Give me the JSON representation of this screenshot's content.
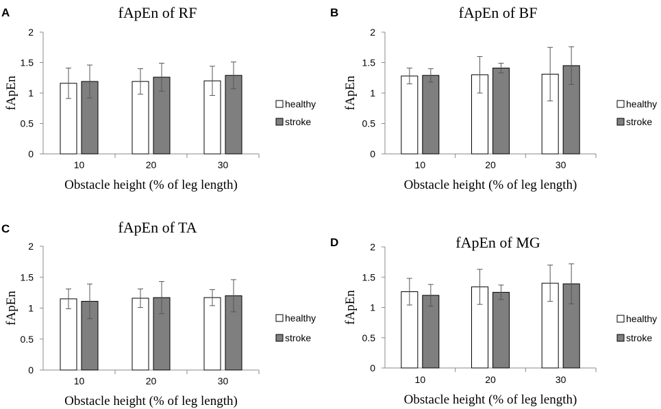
{
  "figure": {
    "legend_labels": [
      "healthy",
      "stroke"
    ],
    "colors": {
      "healthy": "#ffffff",
      "stroke": "#7f7f7f",
      "bar_edge": "#000000"
    }
  },
  "chart_data": [
    {
      "panel": "A",
      "type": "bar",
      "title": "fApEn of RF",
      "xlabel": "Obstacle height (% of leg length)",
      "ylabel": "fApEn",
      "categories": [
        "10",
        "20",
        "30"
      ],
      "ylim": [
        0,
        2
      ],
      "yticks": [
        "0",
        "0.5",
        "1",
        "1.5",
        "2"
      ],
      "legend": "right",
      "series": [
        {
          "name": "healthy",
          "values": [
            1.16,
            1.19,
            1.2
          ],
          "errors": [
            0.25,
            0.21,
            0.24
          ]
        },
        {
          "name": "stroke",
          "values": [
            1.19,
            1.26,
            1.29
          ],
          "errors": [
            0.27,
            0.23,
            0.22
          ]
        }
      ]
    },
    {
      "panel": "B",
      "type": "bar",
      "title": "fApEn of BF",
      "xlabel": "Obstacle height (% of leg length)",
      "ylabel": "fApEn",
      "categories": [
        "10",
        "20",
        "30"
      ],
      "ylim": [
        0,
        2
      ],
      "yticks": [
        "0",
        "0.5",
        "1",
        "1.5",
        "2"
      ],
      "legend": "right",
      "series": [
        {
          "name": "healthy",
          "values": [
            1.28,
            1.3,
            1.31
          ],
          "errors": [
            0.13,
            0.3,
            0.44
          ]
        },
        {
          "name": "stroke",
          "values": [
            1.29,
            1.41,
            1.45
          ],
          "errors": [
            0.11,
            0.08,
            0.31
          ]
        }
      ]
    },
    {
      "panel": "C",
      "type": "bar",
      "title": "fApEn of TA",
      "xlabel": "Obstacle height (% of leg length)",
      "ylabel": "fApEn",
      "categories": [
        "10",
        "20",
        "30"
      ],
      "ylim": [
        0,
        2
      ],
      "yticks": [
        "0",
        "0.5",
        "1",
        "1.5",
        "2"
      ],
      "legend": "right",
      "series": [
        {
          "name": "healthy",
          "values": [
            1.15,
            1.16,
            1.17
          ],
          "errors": [
            0.16,
            0.15,
            0.13
          ]
        },
        {
          "name": "stroke",
          "values": [
            1.11,
            1.17,
            1.2
          ],
          "errors": [
            0.28,
            0.26,
            0.26
          ]
        }
      ]
    },
    {
      "panel": "D",
      "type": "bar",
      "title": "fApEn of MG",
      "xlabel": "Obstacle height (% of leg length)",
      "ylabel": "fApEn",
      "categories": [
        "10",
        "20",
        "30"
      ],
      "ylim": [
        0,
        2
      ],
      "yticks": [
        "0",
        "0.5",
        "1",
        "1.5",
        "2"
      ],
      "legend": "right",
      "series": [
        {
          "name": "healthy",
          "values": [
            1.26,
            1.34,
            1.4
          ],
          "errors": [
            0.22,
            0.29,
            0.3
          ]
        },
        {
          "name": "stroke",
          "values": [
            1.2,
            1.25,
            1.39
          ],
          "errors": [
            0.18,
            0.12,
            0.33
          ]
        }
      ]
    }
  ]
}
